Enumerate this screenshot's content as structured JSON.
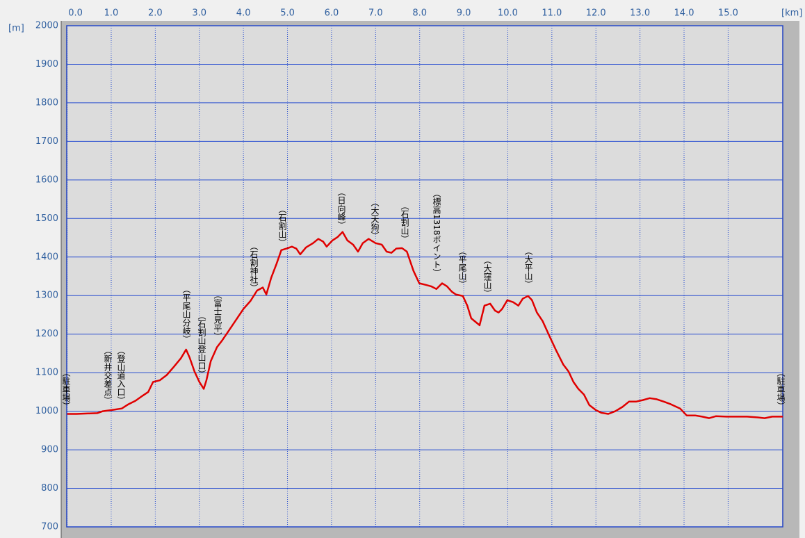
{
  "chart_data": {
    "type": "line",
    "x_unit": "[km]",
    "y_unit": "[m]",
    "xlim": [
      0,
      16.24
    ],
    "ylim": [
      700,
      2000
    ],
    "xticks": [
      {
        "value": 0,
        "label": "0.0"
      },
      {
        "value": 1,
        "label": "1.0"
      },
      {
        "value": 2,
        "label": "2.0"
      },
      {
        "value": 3,
        "label": "3.0"
      },
      {
        "value": 4,
        "label": "4.0"
      },
      {
        "value": 5,
        "label": "5.0"
      },
      {
        "value": 6,
        "label": "6.0"
      },
      {
        "value": 7,
        "label": "7.0"
      },
      {
        "value": 8,
        "label": "8.0"
      },
      {
        "value": 9,
        "label": "9.0"
      },
      {
        "value": 10,
        "label": "10.0"
      },
      {
        "value": 11,
        "label": "11.0"
      },
      {
        "value": 12,
        "label": "12.0"
      },
      {
        "value": 13,
        "label": "13.0"
      },
      {
        "value": 14,
        "label": "14.0"
      },
      {
        "value": 15,
        "label": "15.0"
      }
    ],
    "yticks": [
      700,
      800,
      900,
      1000,
      1100,
      1200,
      1300,
      1400,
      1500,
      1600,
      1700,
      1800,
      1900,
      2000
    ],
    "grid": true,
    "x": [
      0,
      0.21,
      0.45,
      0.68,
      0.81,
      1.0,
      1.24,
      1.39,
      1.55,
      1.71,
      1.84,
      1.95,
      2.1,
      2.26,
      2.42,
      2.58,
      2.7,
      2.78,
      2.89,
      3.0,
      3.1,
      3.16,
      3.26,
      3.4,
      3.52,
      3.68,
      3.84,
      4.0,
      4.16,
      4.31,
      4.44,
      4.52,
      4.63,
      4.75,
      4.86,
      4.98,
      5.1,
      5.2,
      5.29,
      5.42,
      5.58,
      5.7,
      5.81,
      5.89,
      6.02,
      6.14,
      6.25,
      6.36,
      6.49,
      6.6,
      6.71,
      6.84,
      7.0,
      7.14,
      7.25,
      7.36,
      7.47,
      7.6,
      7.71,
      7.86,
      7.99,
      8.13,
      8.26,
      8.38,
      8.51,
      8.62,
      8.73,
      8.82,
      8.98,
      9.08,
      9.17,
      9.36,
      9.47,
      9.6,
      9.71,
      9.79,
      9.87,
      9.99,
      10.12,
      10.24,
      10.34,
      10.46,
      10.55,
      10.66,
      10.79,
      10.94,
      11.1,
      11.26,
      11.38,
      11.49,
      11.6,
      11.73,
      11.85,
      12.0,
      12.12,
      12.28,
      12.44,
      12.6,
      12.75,
      12.91,
      13.07,
      13.22,
      13.38,
      13.54,
      13.7,
      13.91,
      14.06,
      14.25,
      14.41,
      14.57,
      14.72,
      14.96,
      15.2,
      15.43,
      15.67,
      15.83,
      16.0,
      16.24
    ],
    "series": [
      {
        "color": "#e00000",
        "values": [
          993,
          993,
          994,
          995,
          1000,
          1003,
          1007,
          1018,
          1027,
          1040,
          1050,
          1076,
          1080,
          1094,
          1115,
          1137,
          1160,
          1139,
          1103,
          1076,
          1058,
          1080,
          1130,
          1166,
          1184,
          1211,
          1238,
          1265,
          1286,
          1313,
          1321,
          1303,
          1346,
          1382,
          1418,
          1422,
          1427,
          1422,
          1407,
          1425,
          1436,
          1447,
          1440,
          1427,
          1443,
          1452,
          1465,
          1443,
          1432,
          1414,
          1436,
          1447,
          1436,
          1432,
          1414,
          1411,
          1422,
          1423,
          1414,
          1364,
          1332,
          1328,
          1324,
          1317,
          1332,
          1324,
          1310,
          1303,
          1299,
          1274,
          1241,
          1223,
          1274,
          1279,
          1261,
          1256,
          1265,
          1288,
          1283,
          1274,
          1292,
          1299,
          1288,
          1256,
          1234,
          1196,
          1157,
          1121,
          1103,
          1076,
          1058,
          1043,
          1016,
          1003,
          996,
          993,
          1000,
          1011,
          1025,
          1025,
          1029,
          1034,
          1031,
          1025,
          1018,
          1007,
          989,
          989,
          986,
          982,
          987,
          986,
          986,
          986,
          984,
          982,
          986,
          986
        ]
      }
    ],
    "annotations": [
      "（駐車場）",
      "（新井交差点）",
      "（登山道入口）",
      "（平尾山分岐）",
      "（石割山登山口）",
      "（富士見平）",
      "（石割神社）",
      "（石割山）",
      "（日向峰）",
      "（大天狗）",
      "（石割山）",
      "（標高1318ポイント）",
      "（平尾山）",
      "（大窪山）",
      "（大平山）",
      "（駐車場）"
    ]
  }
}
